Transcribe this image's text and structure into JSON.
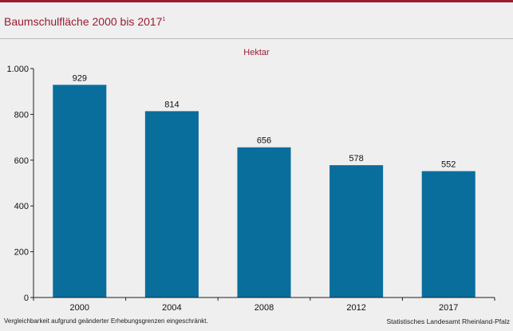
{
  "title": {
    "text": "Baumschulfläche 2000 bis 2017",
    "footnote_mark": "1"
  },
  "chart_data": {
    "type": "bar",
    "title": "Baumschulfläche 2000 bis 2017",
    "unit_label": "Hektar",
    "categories": [
      "2000",
      "2004",
      "2008",
      "2012",
      "2017"
    ],
    "values": [
      929,
      814,
      656,
      578,
      552
    ],
    "value_labels": [
      "929",
      "814",
      "656",
      "578",
      "552"
    ],
    "ylim": [
      0,
      1000
    ],
    "yticks": [
      0,
      200,
      400,
      600,
      800,
      1000
    ],
    "ytick_labels": [
      "0",
      "200",
      "400",
      "600",
      "800",
      "1.000"
    ],
    "grid": false,
    "bar_color": "#0a6e9c"
  },
  "footnote": "Vergleichbarkeit aufgrund geänderter Erhebungsgrenzen eingeschränkt.",
  "source": "Statistisches Landesamt Rheinland-Pfalz",
  "colors": {
    "accent": "#9b1b30",
    "background": "#efefef"
  }
}
